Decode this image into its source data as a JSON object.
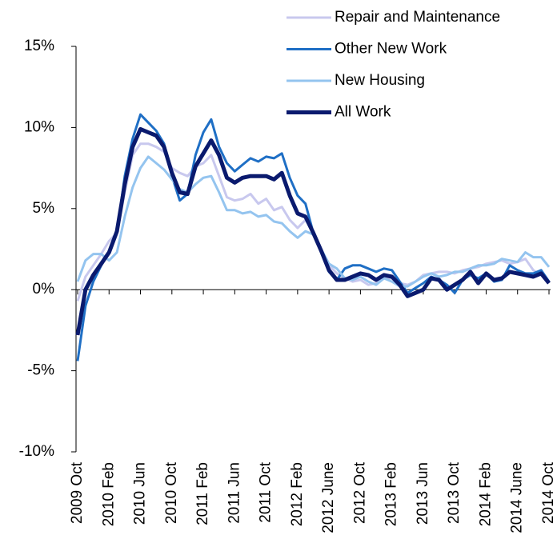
{
  "chart_data": {
    "type": "line",
    "categories": [
      "2009 Oct",
      null,
      null,
      null,
      "2010 Feb",
      null,
      null,
      null,
      "2010 Jun",
      null,
      null,
      null,
      "2010 Oct",
      null,
      null,
      null,
      "2011 Feb",
      null,
      null,
      null,
      "2011 Jun",
      null,
      null,
      null,
      "2011 Oct",
      null,
      null,
      null,
      "2012 Feb",
      null,
      null,
      null,
      "2012 June",
      null,
      null,
      null,
      "2012 Oct",
      null,
      null,
      null,
      "2013 Feb",
      null,
      null,
      null,
      "2013 Jun",
      null,
      null,
      null,
      "2013 Oct",
      null,
      null,
      null,
      "2014 Feb",
      null,
      null,
      null,
      "2014 June",
      null,
      null,
      null,
      "2014 Oct"
    ],
    "series": [
      {
        "name": "Repair and Maintenance",
        "color": "#c8c8ee",
        "values": [
          -0.7,
          0.8,
          1.5,
          2.2,
          3.0,
          3.5,
          6.0,
          8.3,
          9.0,
          9.0,
          8.8,
          8.5,
          7.5,
          7.2,
          7.0,
          7.6,
          7.8,
          8.3,
          7.0,
          5.7,
          5.5,
          5.6,
          5.9,
          5.3,
          5.6,
          4.9,
          5.1,
          4.3,
          3.8,
          4.3,
          3.6,
          2.5,
          1.5,
          1.0,
          0.7,
          0.5,
          0.6,
          0.3,
          0.4,
          0.7,
          0.7,
          0.4,
          0.3,
          0.5,
          0.9,
          1.0,
          1.1,
          1.1,
          1.0,
          1.2,
          1.3,
          1.4,
          1.6,
          1.7,
          1.8,
          1.6,
          1.7,
          1.9,
          1.2,
          0.9,
          0.5
        ]
      },
      {
        "name": "Other New Work",
        "color": "#1f6fc5",
        "values": [
          -4.4,
          -1.0,
          0.5,
          1.5,
          2.3,
          3.5,
          7.0,
          9.3,
          10.8,
          10.3,
          9.8,
          9.0,
          7.0,
          5.5,
          5.9,
          8.3,
          9.7,
          10.5,
          8.8,
          7.8,
          7.3,
          7.7,
          8.1,
          7.9,
          8.2,
          8.1,
          8.4,
          6.9,
          5.8,
          5.3,
          3.5,
          2.3,
          1.1,
          0.6,
          1.3,
          1.5,
          1.5,
          1.3,
          1.1,
          1.3,
          1.2,
          0.5,
          -0.2,
          0.1,
          0.4,
          0.8,
          0.6,
          0.3,
          -0.2,
          0.6,
          0.9,
          0.7,
          1.0,
          0.5,
          0.6,
          1.5,
          1.2,
          1.0,
          1.0,
          1.2,
          0.5
        ]
      },
      {
        "name": "New Housing",
        "color": "#94c4ef",
        "values": [
          0.5,
          1.8,
          2.2,
          2.2,
          1.8,
          2.3,
          4.5,
          6.3,
          7.5,
          8.2,
          7.8,
          7.4,
          6.8,
          6.2,
          6.0,
          6.5,
          6.9,
          7.0,
          6.0,
          4.9,
          4.9,
          4.7,
          4.8,
          4.5,
          4.6,
          4.2,
          4.1,
          3.6,
          3.2,
          3.6,
          3.4,
          2.5,
          1.6,
          1.3,
          0.7,
          0.6,
          0.8,
          0.5,
          0.3,
          0.7,
          0.5,
          0.2,
          0.2,
          0.5,
          0.8,
          1.0,
          0.8,
          0.9,
          1.1,
          1.1,
          1.3,
          1.5,
          1.5,
          1.6,
          1.9,
          1.8,
          1.7,
          2.3,
          2.0,
          2.0,
          1.4
        ]
      },
      {
        "name": "All Work",
        "color": "#0a1a6e",
        "values": [
          -2.8,
          0.0,
          0.9,
          1.6,
          2.3,
          3.6,
          6.5,
          8.8,
          9.9,
          9.7,
          9.5,
          8.8,
          7.2,
          6.0,
          5.9,
          7.6,
          8.4,
          9.2,
          8.3,
          6.9,
          6.6,
          6.9,
          7.0,
          7.0,
          7.0,
          6.8,
          7.2,
          5.8,
          4.7,
          4.5,
          3.5,
          2.4,
          1.2,
          0.6,
          0.6,
          0.8,
          1.0,
          0.9,
          0.6,
          0.9,
          0.8,
          0.3,
          -0.4,
          -0.2,
          0.0,
          0.7,
          0.6,
          0.0,
          0.3,
          0.6,
          1.1,
          0.4,
          1.0,
          0.6,
          0.7,
          1.1,
          1.0,
          0.9,
          0.8,
          1.0,
          0.4
        ]
      }
    ],
    "ylim": [
      -10,
      15
    ],
    "yticks": [
      {
        "value": -10,
        "label": "-10%"
      },
      {
        "value": -5,
        "label": "-5%"
      },
      {
        "value": 0,
        "label": "0%"
      },
      {
        "value": 5,
        "label": "5%"
      },
      {
        "value": 10,
        "label": "10%"
      },
      {
        "value": 15,
        "label": "15%"
      }
    ],
    "legend": "top-right"
  }
}
